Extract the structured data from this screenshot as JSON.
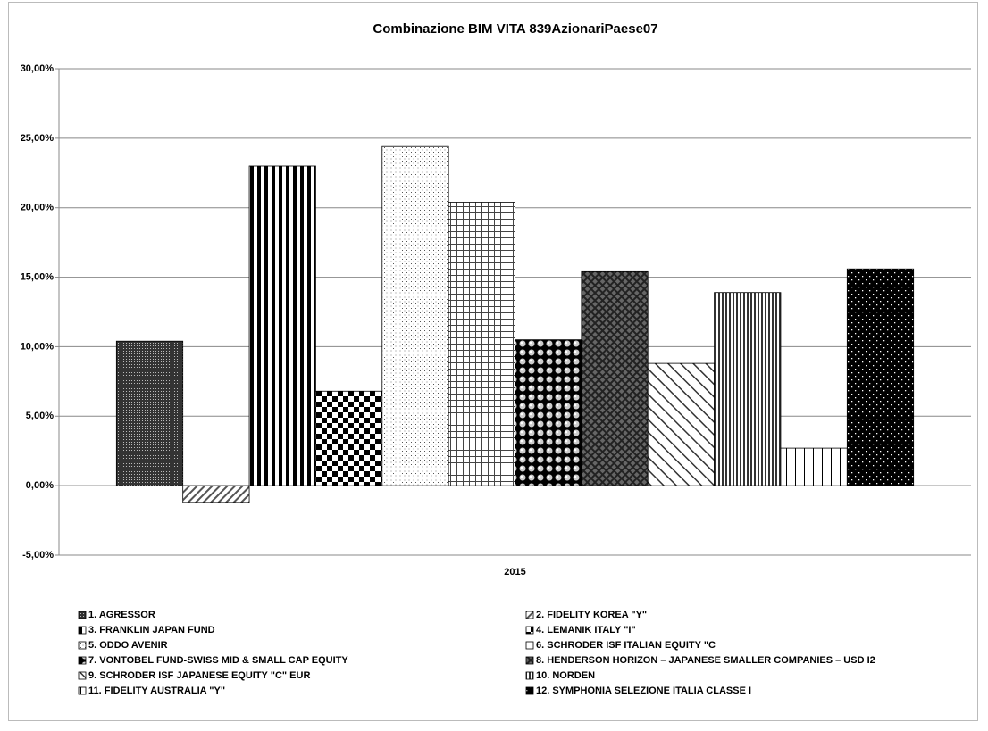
{
  "chart_data": {
    "type": "bar",
    "title": "Combinazione BIM VITA 839AzionariPaese07",
    "categories": [
      "2015"
    ],
    "ylim": [
      -5,
      30
    ],
    "yticks": [
      {
        "value": -5,
        "label": "-5,00%"
      },
      {
        "value": 0,
        "label": "0,00%"
      },
      {
        "value": 5,
        "label": "5,00%"
      },
      {
        "value": 10,
        "label": "10,00%"
      },
      {
        "value": 15,
        "label": "15,00%"
      },
      {
        "value": 20,
        "label": "20,00%"
      },
      {
        "value": 25,
        "label": "25,00%"
      },
      {
        "value": 30,
        "label": "30,00%"
      }
    ],
    "grid": true,
    "legend": "bottom",
    "series": [
      {
        "name": "1. AGRESSOR",
        "color": "#000000",
        "pattern": "dense-dots",
        "values": [
          10.4
        ]
      },
      {
        "name": "2. FIDELITY KOREA \"Y\"",
        "color": "#000000",
        "pattern": "light-diagonal",
        "values": [
          -1.2
        ]
      },
      {
        "name": "3. FRANKLIN JAPAN FUND",
        "color": "#000000",
        "pattern": "wide-vertical",
        "values": [
          23.0
        ]
      },
      {
        "name": "4. LEMANIK ITALY \"I\"",
        "color": "#000000",
        "pattern": "checker",
        "values": [
          6.8
        ]
      },
      {
        "name": "5. ODDO AVENIR",
        "color": "#000000",
        "pattern": "sparse-dots",
        "values": [
          24.4
        ]
      },
      {
        "name": "6. SCHRODER ISF ITALIAN EQUITY \"C",
        "color": "#000000",
        "pattern": "small-grid",
        "values": [
          20.4
        ]
      },
      {
        "name": "7. VONTOBEL FUND-SWISS MID & SMALL CAP EQUITY",
        "color": "#000000",
        "pattern": "spheres",
        "values": [
          10.5
        ]
      },
      {
        "name": "8. HENDERSON HORIZON – JAPANESE SMALLER COMPANIES – USD I2",
        "color": "#000000",
        "pattern": "crosshatch",
        "values": [
          15.4
        ]
      },
      {
        "name": "9. SCHRODER ISF JAPANESE EQUITY \"C\" EUR",
        "color": "#000000",
        "pattern": "wide-diagonal",
        "values": [
          8.8
        ]
      },
      {
        "name": "10. NORDEN",
        "color": "#000000",
        "pattern": "thin-vertical",
        "values": [
          13.9
        ]
      },
      {
        "name": "11. FIDELITY AUSTRALIA \"Y\"",
        "color": "#000000",
        "pattern": "sparse-vertical",
        "values": [
          2.7
        ]
      },
      {
        "name": "12. SYMPHONIA SELEZIONE ITALIA CLASSE I",
        "color": "#000000",
        "pattern": "white-dots",
        "values": [
          15.6
        ]
      }
    ]
  }
}
